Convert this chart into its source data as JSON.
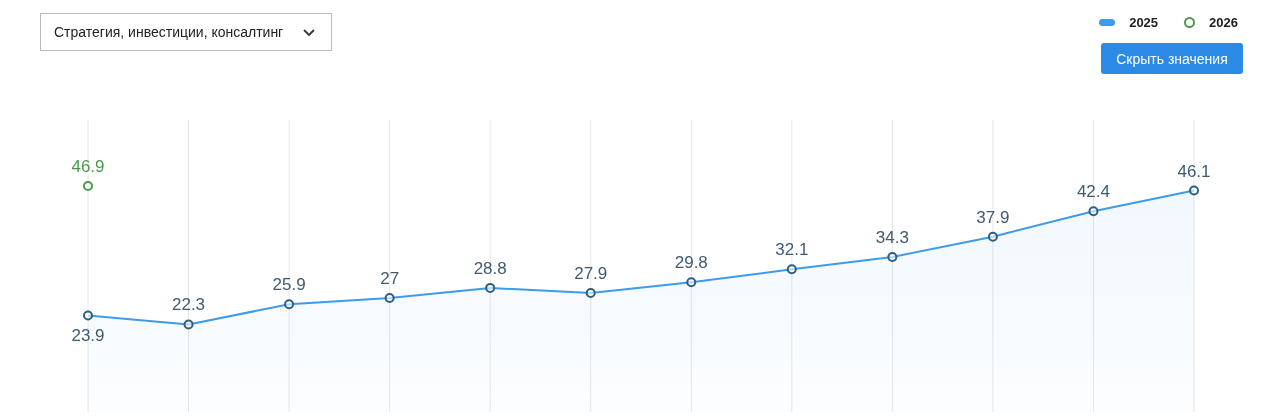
{
  "chart_data": {
    "type": "area",
    "annotations": [
      "Стратегия, инвестиции, консалтинг",
      "Скрыть значения"
    ],
    "categories": [
      null,
      null,
      null,
      null,
      null,
      null,
      null,
      null,
      null,
      null,
      null,
      null
    ],
    "series": [
      {
        "name": "2025",
        "color": "#3d9be9",
        "values": [
          23.9,
          22.3,
          25.9,
          27,
          28.8,
          27.9,
          29.8,
          32.1,
          34.3,
          37.9,
          42.4,
          46.1
        ]
      },
      {
        "name": "2026",
        "type": "line",
        "color": "#4a9a4a",
        "values": [
          46.9,
          null,
          null,
          null,
          null,
          null,
          null,
          null,
          null,
          null,
          null,
          null
        ]
      }
    ],
    "data_labels": true,
    "grid": "x",
    "legend": "top right",
    "marker": "circle"
  }
}
